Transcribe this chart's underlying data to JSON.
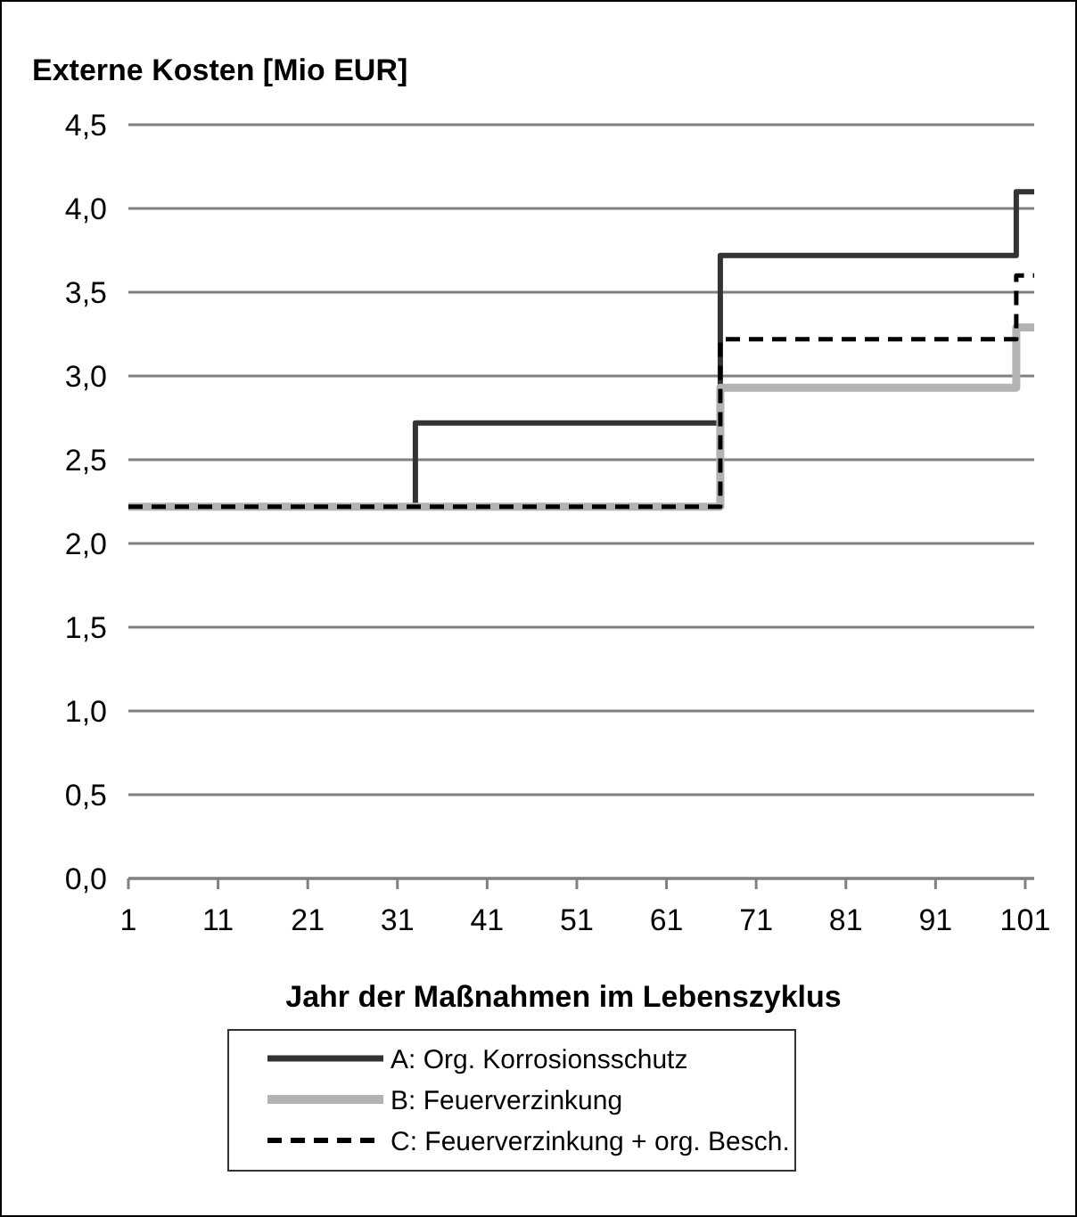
{
  "chart_data": {
    "type": "step",
    "title": "Externe Kosten [Mio EUR]",
    "xlabel": "Jahr der Maßnahmen im Lebenszyklus",
    "xlim": [
      1,
      102
    ],
    "xticks": [
      1,
      11,
      21,
      31,
      41,
      51,
      61,
      71,
      81,
      91,
      101
    ],
    "ylim": [
      0,
      4.5
    ],
    "yticks": [
      {
        "value": 0,
        "label": "0,0"
      },
      {
        "value": 0.5,
        "label": "0,5"
      },
      {
        "value": 1,
        "label": "1,0"
      },
      {
        "value": 1.5,
        "label": "1,5"
      },
      {
        "value": 2,
        "label": "2,0"
      },
      {
        "value": 2.5,
        "label": "2,5"
      },
      {
        "value": 3,
        "label": "3,0"
      },
      {
        "value": 3.5,
        "label": "3,5"
      },
      {
        "value": 4,
        "label": "4,0"
      },
      {
        "value": 4.5,
        "label": "4,5"
      }
    ],
    "grid": "y",
    "legend": "bottom",
    "series": [
      {
        "name": "A: Org. Korrosionsschutz",
        "color": "#333333",
        "line_style": "solid",
        "x": [
          1,
          33,
          67,
          100,
          102
        ],
        "values": [
          2.22,
          2.72,
          3.72,
          4.1,
          4.1
        ]
      },
      {
        "name": "B: Feuerverzinkung",
        "color": "#b3b3b3",
        "line_style": "solid",
        "x": [
          1,
          67,
          100,
          102
        ],
        "values": [
          2.22,
          2.93,
          3.29,
          3.29
        ]
      },
      {
        "name": "C: Feuerverzinkung + org. Besch.",
        "color": "#000000",
        "line_style": "dashed",
        "x": [
          1,
          67,
          100,
          102
        ],
        "values": [
          2.22,
          3.22,
          3.6,
          3.6
        ]
      }
    ]
  }
}
